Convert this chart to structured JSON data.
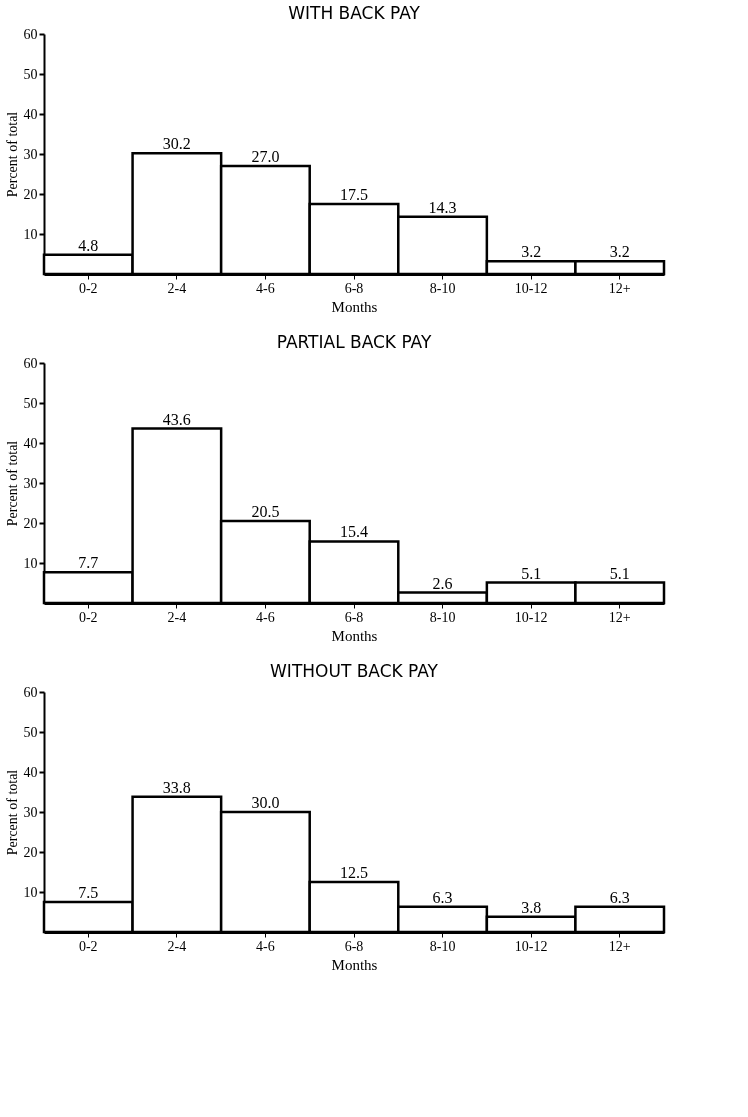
{
  "chart_data": [
    {
      "type": "bar",
      "title": "WITH BACK PAY",
      "xlabel": "Months",
      "ylabel": "Percent of total",
      "categories": [
        "0-2",
        "2-4",
        "4-6",
        "6-8",
        "8-10",
        "10-12",
        "12+"
      ],
      "values": [
        4.8,
        30.2,
        27.0,
        17.5,
        14.3,
        3.2,
        3.2
      ],
      "value_labels": [
        "4.8",
        "30.2",
        "27.0",
        "17.5",
        "14.3",
        "3.2",
        "3.2"
      ],
      "color": "#ffffff",
      "ylim": [
        0,
        60
      ],
      "yticks": [
        10,
        20,
        30,
        40,
        50,
        60
      ],
      "grid": false
    },
    {
      "type": "bar",
      "title": "PARTIAL BACK PAY",
      "xlabel": "Months",
      "ylabel": "Percent of total",
      "categories": [
        "0-2",
        "2-4",
        "4-6",
        "6-8",
        "8-10",
        "10-12",
        "12+"
      ],
      "values": [
        7.7,
        43.6,
        20.5,
        15.4,
        2.6,
        5.1,
        5.1
      ],
      "value_labels": [
        "7.7",
        "43.6",
        "20.5",
        "15.4",
        "2.6",
        "5.1",
        "5.1"
      ],
      "color": "#ffffff",
      "ylim": [
        0,
        60
      ],
      "yticks": [
        10,
        20,
        30,
        40,
        50,
        60
      ],
      "grid": false
    },
    {
      "type": "bar",
      "title": "WITHOUT BACK PAY",
      "xlabel": "Months",
      "ylabel": "Percent of total",
      "categories": [
        "0-2",
        "2-4",
        "4-6",
        "6-8",
        "8-10",
        "10-12",
        "12+"
      ],
      "values": [
        7.5,
        33.8,
        30.0,
        12.5,
        6.3,
        3.8,
        6.3
      ],
      "value_labels": [
        "7.5",
        "33.8",
        "30.0",
        "12.5",
        "6.3",
        "3.8",
        "6.3"
      ],
      "color": "#ffffff",
      "ylim": [
        0,
        60
      ],
      "yticks": [
        10,
        20,
        30,
        40,
        50,
        60
      ],
      "grid": false
    }
  ]
}
